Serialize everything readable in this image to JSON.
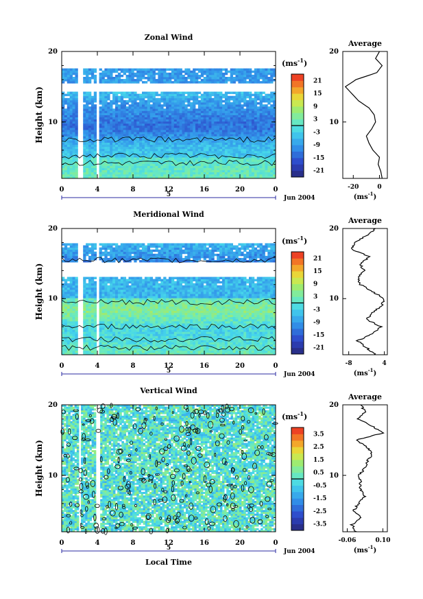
{
  "figure": {
    "xlabel": "Local Time",
    "date_label": "Jun 2004",
    "day_label": "5",
    "unit_label": "(ms",
    "unit_sup": "-1",
    "avg_title": "Average"
  },
  "chart_data": [
    {
      "type": "heatmap",
      "title": "Zonal Wind",
      "ylabel": "Height (km)",
      "xlabel": "",
      "x_ticks": [
        "0",
        "4",
        "8",
        "12",
        "16",
        "20",
        "0"
      ],
      "y_ticks": [
        "10",
        "20"
      ],
      "xlim": [
        0,
        24
      ],
      "ylim": [
        2,
        20
      ],
      "colorbar": {
        "unit": "ms-1",
        "ticks": [
          "21",
          "15",
          "9",
          "3",
          "-3",
          "-9",
          "-15",
          "-21"
        ],
        "range": [
          -24,
          24
        ]
      },
      "profile": {
        "title": "Average",
        "x_ticks": [
          "-20",
          "0"
        ],
        "xlim": [
          -28,
          6
        ],
        "heights": [
          2,
          3,
          4,
          5,
          6,
          7,
          8,
          9,
          10,
          11,
          12,
          13,
          14,
          15,
          16,
          17,
          18,
          19,
          20
        ],
        "values": [
          2,
          1,
          -1,
          0,
          -5,
          -8,
          -10,
          -6,
          -3,
          -4,
          -8,
          -16,
          -21,
          -26,
          -18,
          -2,
          2,
          -3,
          0
        ]
      }
    },
    {
      "type": "heatmap",
      "title": "Meridional Wind",
      "ylabel": "Height (km)",
      "xlabel": "",
      "x_ticks": [
        "0",
        "4",
        "8",
        "12",
        "16",
        "20",
        "0"
      ],
      "y_ticks": [
        "10",
        "20"
      ],
      "xlim": [
        0,
        24
      ],
      "ylim": [
        2,
        20
      ],
      "colorbar": {
        "unit": "ms-1",
        "ticks": [
          "21",
          "15",
          "9",
          "3",
          "-3",
          "-9",
          "-15",
          "-21"
        ],
        "range": [
          -24,
          24
        ]
      },
      "profile": {
        "title": "Average",
        "x_ticks": [
          "-8",
          "4"
        ],
        "xlim": [
          -10,
          5
        ],
        "heights": [
          2,
          3,
          4,
          5,
          6,
          7,
          8,
          9,
          10,
          11,
          12,
          13,
          14,
          15,
          16,
          17,
          18,
          19,
          20
        ],
        "values": [
          1,
          -2,
          -5,
          0,
          3,
          -2,
          0,
          3,
          4,
          0,
          -4,
          -5,
          -3,
          -4,
          -1,
          -7,
          -6,
          -2,
          1
        ]
      }
    },
    {
      "type": "heatmap",
      "title": "Vertical Wind",
      "ylabel": "Height (km)",
      "xlabel": "Local Time",
      "x_ticks": [
        "0",
        "4",
        "8",
        "12",
        "16",
        "20",
        "0"
      ],
      "y_ticks": [
        "10",
        "20"
      ],
      "xlim": [
        0,
        24
      ],
      "ylim": [
        2,
        20
      ],
      "colorbar": {
        "unit": "ms-1",
        "ticks": [
          "3.5",
          "2.5",
          "1.5",
          "0.5",
          "-0.5",
          "-1.5",
          "-2.5",
          "-3.5"
        ],
        "range": [
          -4,
          4
        ]
      },
      "profile": {
        "title": "Average",
        "x_ticks": [
          "-0.06",
          "0.10"
        ],
        "xlim": [
          -0.08,
          0.12
        ],
        "heights": [
          2,
          3,
          4,
          5,
          6,
          7,
          8,
          9,
          10,
          11,
          12,
          13,
          14,
          15,
          16,
          17,
          18,
          19,
          20
        ],
        "values": [
          -0.02,
          -0.04,
          0.0,
          -0.03,
          -0.01,
          0.02,
          0.0,
          0.0,
          -0.01,
          0.02,
          0.03,
          0.05,
          0.03,
          -0.02,
          0.1,
          0.05,
          -0.01,
          0.02,
          0.0
        ]
      }
    }
  ]
}
